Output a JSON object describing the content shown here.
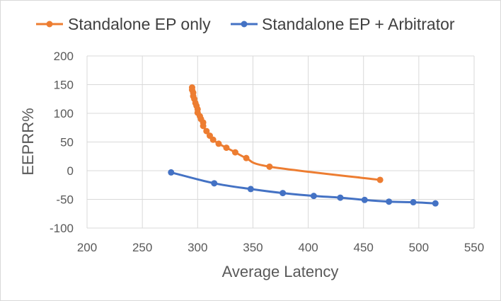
{
  "chart_data": {
    "type": "scatter",
    "title": "",
    "xlabel": "Average Latency",
    "ylabel": "EEPRR%",
    "xlim": [
      200,
      550
    ],
    "ylim": [
      -100,
      200
    ],
    "xticks": [
      200,
      250,
      300,
      350,
      400,
      450,
      500,
      550
    ],
    "yticks": [
      -100,
      -50,
      0,
      50,
      100,
      150,
      200
    ],
    "grid": true,
    "legend_position": "top",
    "series": [
      {
        "name": "Standalone EP only",
        "color": "#ed7d31",
        "x": [
          295,
          295,
          296,
          296,
          297,
          298,
          299,
          300,
          300,
          302,
          303,
          305,
          305,
          308,
          311,
          314,
          319,
          326,
          334,
          344,
          365,
          465
        ],
        "y": [
          145,
          141,
          136,
          130,
          125,
          118,
          113,
          107,
          101,
          95,
          90,
          84,
          78,
          69,
          61,
          54,
          47,
          40,
          32,
          22,
          7,
          -16
        ]
      },
      {
        "name": "Standalone EP + Arbitrator",
        "color": "#4472c4",
        "x": [
          276,
          315,
          348,
          377,
          405,
          429,
          451,
          473,
          495,
          515
        ],
        "y": [
          -3,
          -22,
          -32,
          -39,
          -44,
          -47,
          -51,
          -54,
          -55,
          -57
        ]
      }
    ]
  }
}
